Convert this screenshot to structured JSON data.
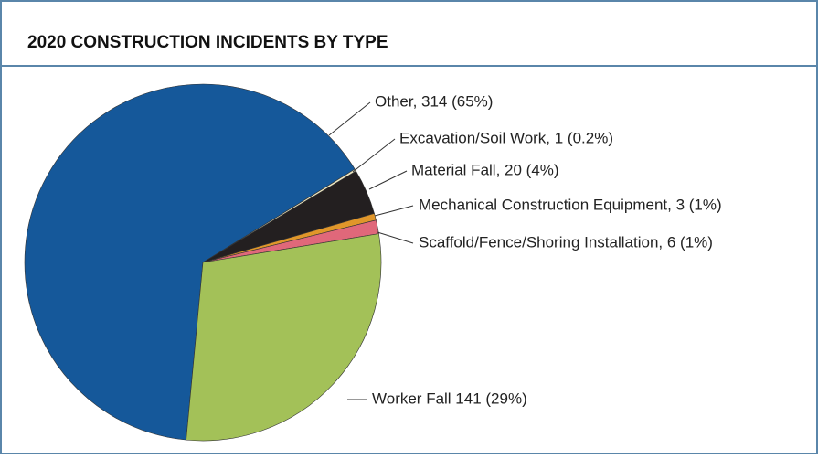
{
  "chart_data": {
    "type": "pie",
    "title": "2020 CONSTRUCTION INCIDENTS BY TYPE",
    "values": [
      314,
      1,
      20,
      3,
      6,
      141
    ],
    "value_labels": [
      "Other, 314 (65%)",
      "Excavation/Soil Work, 1 (0.2%)",
      "Material Fall, 20 (4%)",
      "Mechanical Construction Equipment, 3 (1%)",
      "Scaffold/Fence/Shoring Installation, 6 (1%)",
      "Worker Fall 141 (29%)"
    ],
    "colors": [
      "#15589a",
      "#ece6c2",
      "#231f20",
      "#e0962a",
      "#e0687a",
      "#a3c158"
    ]
  }
}
